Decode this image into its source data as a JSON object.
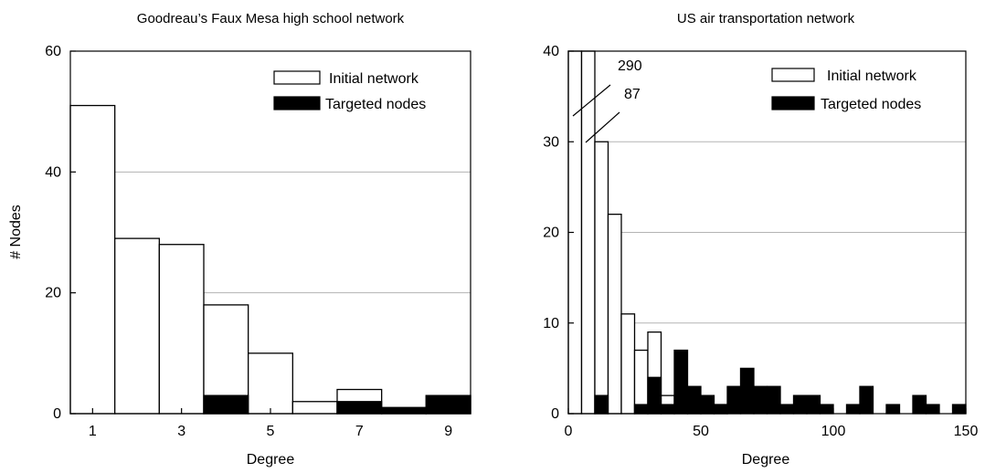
{
  "chart_data": [
    {
      "type": "bar",
      "title": "Goodreau’s Faux Mesa high school network",
      "xlabel": "Degree",
      "ylabel": "# Nodes",
      "xlim": [
        0.5,
        9.5
      ],
      "ylim": [
        0,
        60
      ],
      "xticks": [
        1,
        3,
        5,
        7,
        9
      ],
      "yticks": [
        0,
        20,
        40,
        60
      ],
      "grid": "horizontal",
      "legend_position": "top-right",
      "bin_width": 1,
      "series": [
        {
          "name": "Initial network",
          "bins": [
            [
              0.5,
              51
            ],
            [
              1.5,
              29
            ],
            [
              2.5,
              28
            ],
            [
              3.5,
              18
            ],
            [
              4.5,
              10
            ],
            [
              5.5,
              2
            ],
            [
              6.5,
              4
            ],
            [
              7.5,
              1
            ],
            [
              8.5,
              3
            ]
          ]
        },
        {
          "name": "Targeted nodes",
          "bins": [
            [
              3.5,
              3
            ],
            [
              6.5,
              2
            ],
            [
              7.5,
              1
            ],
            [
              8.5,
              3
            ]
          ]
        }
      ]
    },
    {
      "type": "bar",
      "title": "US air transportation network",
      "xlabel": "Degree",
      "ylabel": "",
      "xlim": [
        0,
        150
      ],
      "ylim": [
        0,
        40
      ],
      "xticks": [
        0,
        50,
        100,
        150
      ],
      "yticks": [
        0,
        10,
        20,
        30,
        40
      ],
      "grid": "horizontal",
      "legend_position": "top-right",
      "bin_width": 5,
      "annotations": [
        {
          "text": "290",
          "bar_start": 0
        },
        {
          "text": "87",
          "bar_start": 5
        }
      ],
      "series": [
        {
          "name": "Initial network",
          "bins": [
            [
              0,
              290
            ],
            [
              5,
              87
            ],
            [
              10,
              30
            ],
            [
              15,
              22
            ],
            [
              20,
              11
            ],
            [
              25,
              7
            ],
            [
              30,
              9
            ],
            [
              35,
              2
            ],
            [
              40,
              1
            ],
            [
              45,
              1
            ],
            [
              50,
              1
            ],
            [
              55,
              1
            ]
          ]
        },
        {
          "name": "Targeted nodes",
          "bins": [
            [
              10,
              2
            ],
            [
              25,
              1
            ],
            [
              30,
              4
            ],
            [
              35,
              1
            ],
            [
              40,
              7
            ],
            [
              45,
              3
            ],
            [
              50,
              2
            ],
            [
              55,
              1
            ],
            [
              60,
              3
            ],
            [
              65,
              5
            ],
            [
              70,
              3
            ],
            [
              75,
              3
            ],
            [
              80,
              1
            ],
            [
              85,
              2
            ],
            [
              90,
              2
            ],
            [
              95,
              1
            ],
            [
              105,
              1
            ],
            [
              110,
              3
            ],
            [
              120,
              1
            ],
            [
              130,
              2
            ],
            [
              135,
              1
            ],
            [
              145,
              1
            ]
          ]
        }
      ]
    }
  ]
}
